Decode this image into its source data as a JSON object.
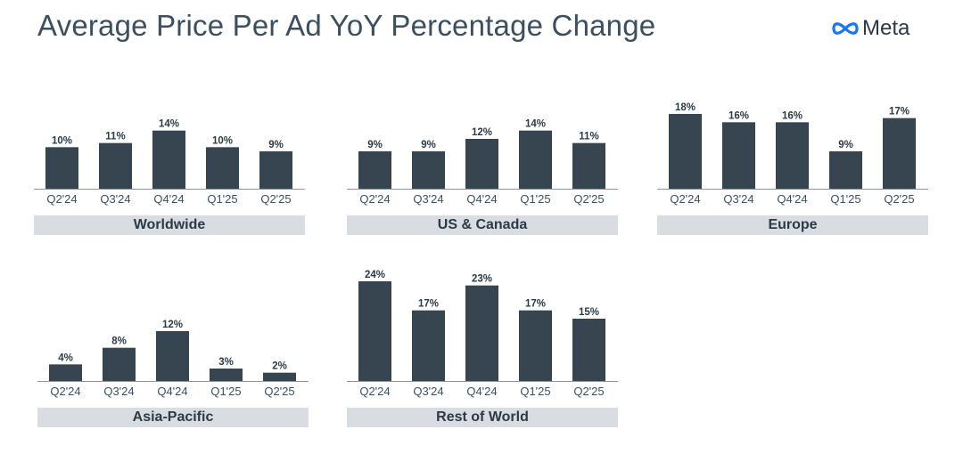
{
  "header": {
    "title": "Average Price Per Ad YoY Percentage Change",
    "logo_text": "Meta",
    "logo_icon": "meta-infinity-icon"
  },
  "colors": {
    "bar": "#36454f",
    "caption_bg": "#d9dde2",
    "title": "#3b4f5f",
    "logo_blue": "#1877f2"
  },
  "chart_data": [
    {
      "type": "bar",
      "title": "Worldwide",
      "unit": "%",
      "categories": [
        "Q2'24",
        "Q3'24",
        "Q4'24",
        "Q1'25",
        "Q2'25"
      ],
      "values": [
        10,
        11,
        14,
        10,
        9
      ],
      "labels": [
        "10%",
        "11%",
        "14%",
        "10%",
        "9%"
      ],
      "ylim": [
        0,
        24
      ]
    },
    {
      "type": "bar",
      "title": "US & Canada",
      "unit": "%",
      "categories": [
        "Q2'24",
        "Q3'24",
        "Q4'24",
        "Q1'25",
        "Q2'25"
      ],
      "values": [
        9,
        9,
        12,
        14,
        11
      ],
      "labels": [
        "9%",
        "9%",
        "12%",
        "14%",
        "11%"
      ],
      "ylim": [
        0,
        24
      ]
    },
    {
      "type": "bar",
      "title": "Europe",
      "unit": "%",
      "categories": [
        "Q2'24",
        "Q3'24",
        "Q4'24",
        "Q1'25",
        "Q2'25"
      ],
      "values": [
        18,
        16,
        16,
        9,
        17
      ],
      "labels": [
        "18%",
        "16%",
        "16%",
        "9%",
        "17%"
      ],
      "ylim": [
        0,
        24
      ]
    },
    {
      "type": "bar",
      "title": "Asia-Pacific",
      "unit": "%",
      "categories": [
        "Q2'24",
        "Q3'24",
        "Q4'24",
        "Q1'25",
        "Q2'25"
      ],
      "values": [
        4,
        8,
        12,
        3,
        2
      ],
      "labels": [
        "4%",
        "8%",
        "12%",
        "3%",
        "2%"
      ],
      "ylim": [
        0,
        24
      ]
    },
    {
      "type": "bar",
      "title": "Rest of World",
      "unit": "%",
      "categories": [
        "Q2'24",
        "Q3'24",
        "Q4'24",
        "Q1'25",
        "Q2'25"
      ],
      "values": [
        24,
        17,
        23,
        17,
        15
      ],
      "labels": [
        "24%",
        "17%",
        "23%",
        "17%",
        "15%"
      ],
      "ylim": [
        0,
        24
      ]
    }
  ]
}
